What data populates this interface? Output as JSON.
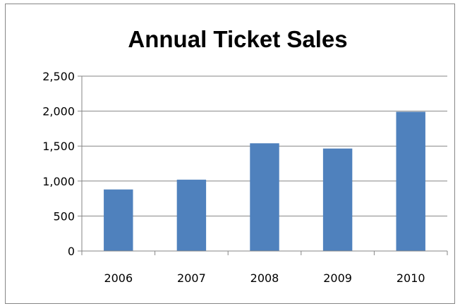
{
  "chart_data": {
    "type": "bar",
    "title": "Annual Ticket Sales",
    "xlabel": "",
    "ylabel": "",
    "categories": [
      "2006",
      "2007",
      "2008",
      "2009",
      "2010"
    ],
    "values": [
      880,
      1020,
      1540,
      1465,
      1990
    ],
    "ylim": [
      0,
      2500
    ],
    "yticks": [
      0,
      500,
      1000,
      1500,
      2000,
      2500
    ],
    "ytick_labels": [
      "0",
      "500",
      "1,000",
      "1,500",
      "2,000",
      "2,500"
    ],
    "grid": true,
    "legend": "none",
    "bar_color": "#4f81bd",
    "grid_color": "#868686"
  }
}
